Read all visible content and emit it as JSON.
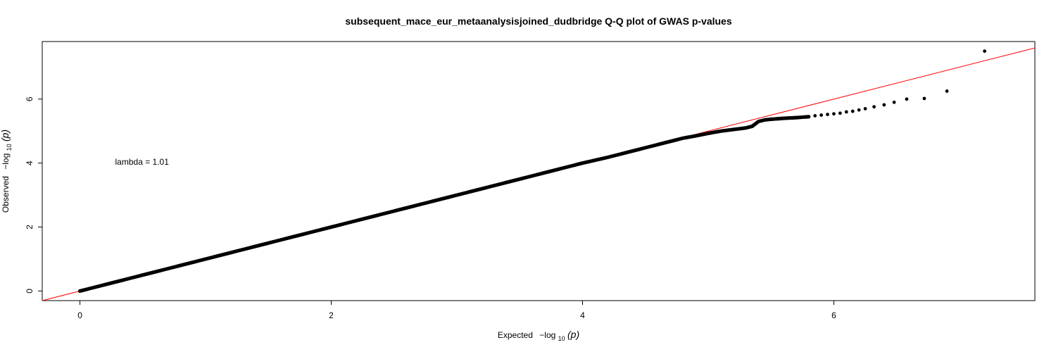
{
  "chart_data": {
    "type": "scatter",
    "title": "subsequent_mace_eur_metaanalysisjoined_dudbridge Q-Q plot of GWAS p-values",
    "xlabel": {
      "prefix": "Expected",
      "expr": "−log",
      "sub": "10",
      "arg": "(p)"
    },
    "ylabel": {
      "prefix": "Observed",
      "expr": "−log",
      "sub": "10",
      "arg": "(p)"
    },
    "xlim": [
      -0.3,
      7.6
    ],
    "ylim": [
      -0.3,
      7.8
    ],
    "x_ticks": [
      0,
      2,
      4,
      6
    ],
    "y_ticks": [
      0,
      2,
      4,
      6
    ],
    "annotation": {
      "text": "lambda = 1.01",
      "x": 0.28,
      "y": 3.95
    },
    "reference_line": {
      "slope": 1,
      "intercept": 0,
      "color": "#ff0000"
    },
    "point_color": "#000000",
    "bulk_series": {
      "name": "",
      "x": [
        0,
        0.1,
        0.2,
        0.3,
        0.4,
        0.5,
        0.6,
        0.7,
        0.8,
        0.9,
        1.0,
        1.2,
        1.4,
        1.6,
        1.8,
        2.0,
        2.2,
        2.4,
        2.6,
        2.8,
        3.0,
        3.2,
        3.4,
        3.6,
        3.8,
        4.0,
        4.2,
        4.4,
        4.6,
        4.8,
        4.9,
        5.0,
        5.1,
        5.2,
        5.3,
        5.35,
        5.4,
        5.45,
        5.5,
        5.6,
        5.7,
        5.8
      ],
      "y": [
        0,
        0.1,
        0.2,
        0.3,
        0.4,
        0.5,
        0.6,
        0.7,
        0.8,
        0.9,
        1.0,
        1.2,
        1.4,
        1.6,
        1.8,
        2.0,
        2.2,
        2.4,
        2.6,
        2.8,
        3.0,
        3.2,
        3.4,
        3.6,
        3.8,
        4.0,
        4.18,
        4.38,
        4.58,
        4.78,
        4.85,
        4.93,
        5.0,
        5.05,
        5.1,
        5.15,
        5.3,
        5.35,
        5.37,
        5.4,
        5.42,
        5.45
      ]
    },
    "tail_points": {
      "x": [
        5.85,
        5.9,
        5.95,
        6.0,
        6.05,
        6.1,
        6.15,
        6.2,
        6.25,
        6.32,
        6.4,
        6.48,
        6.58,
        6.72,
        6.9,
        7.2
      ],
      "y": [
        5.48,
        5.5,
        5.52,
        5.54,
        5.56,
        5.6,
        5.62,
        5.66,
        5.7,
        5.76,
        5.82,
        5.9,
        6.0,
        6.02,
        6.25,
        7.5
      ]
    }
  }
}
